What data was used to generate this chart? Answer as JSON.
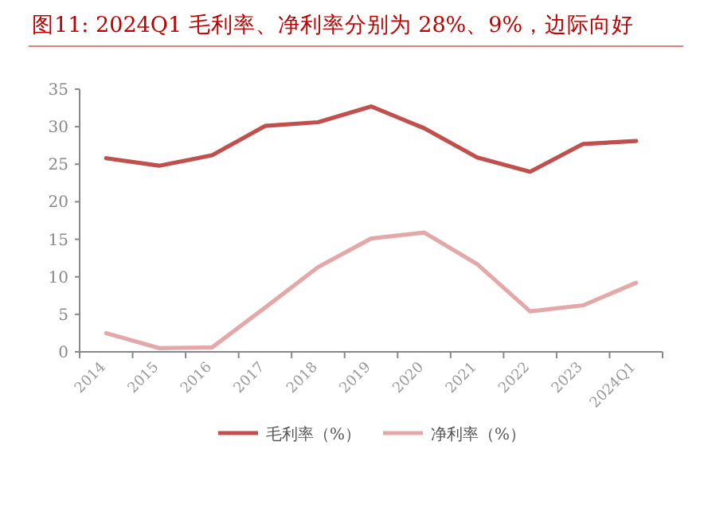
{
  "chart_data": {
    "type": "line",
    "title": "图11:  2024Q1 毛利率、净利率分别为 28%、9%，边际向好",
    "categories": [
      "2014",
      "2015",
      "2016",
      "2017",
      "2018",
      "2019",
      "2020",
      "2021",
      "2022",
      "2023",
      "2024Q1"
    ],
    "series": [
      {
        "name": "毛利率（%）",
        "color": "#c0504d",
        "values": [
          25.8,
          24.8,
          26.2,
          30.1,
          30.6,
          32.7,
          29.8,
          25.9,
          24.0,
          27.7,
          28.1
        ]
      },
      {
        "name": "净利率（%）",
        "color": "#e3a9a8",
        "values": [
          2.5,
          0.5,
          0.6,
          5.9,
          11.3,
          15.1,
          15.9,
          11.7,
          5.4,
          6.2,
          9.2
        ]
      }
    ],
    "ylim": [
      0,
      35
    ],
    "yticks": [
      0,
      5,
      10,
      15,
      20,
      25,
      30,
      35
    ],
    "legend": "bottom",
    "grid": false,
    "marker": "none",
    "line_style": "solid"
  }
}
